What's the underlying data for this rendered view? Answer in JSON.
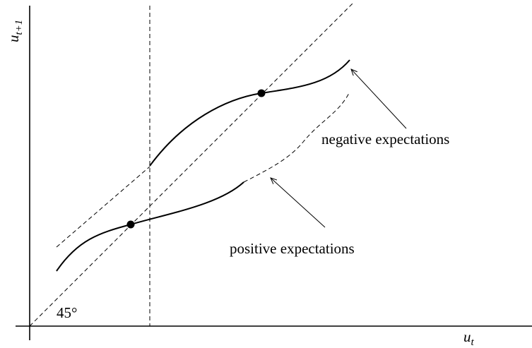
{
  "axes": {
    "x_label": {
      "main": "u",
      "sub": "t"
    },
    "y_label": {
      "main": "u",
      "sub": "t+1"
    }
  },
  "annotations": {
    "angle": "45°",
    "negative": "negative expectations",
    "positive": "positive expectations"
  }
}
